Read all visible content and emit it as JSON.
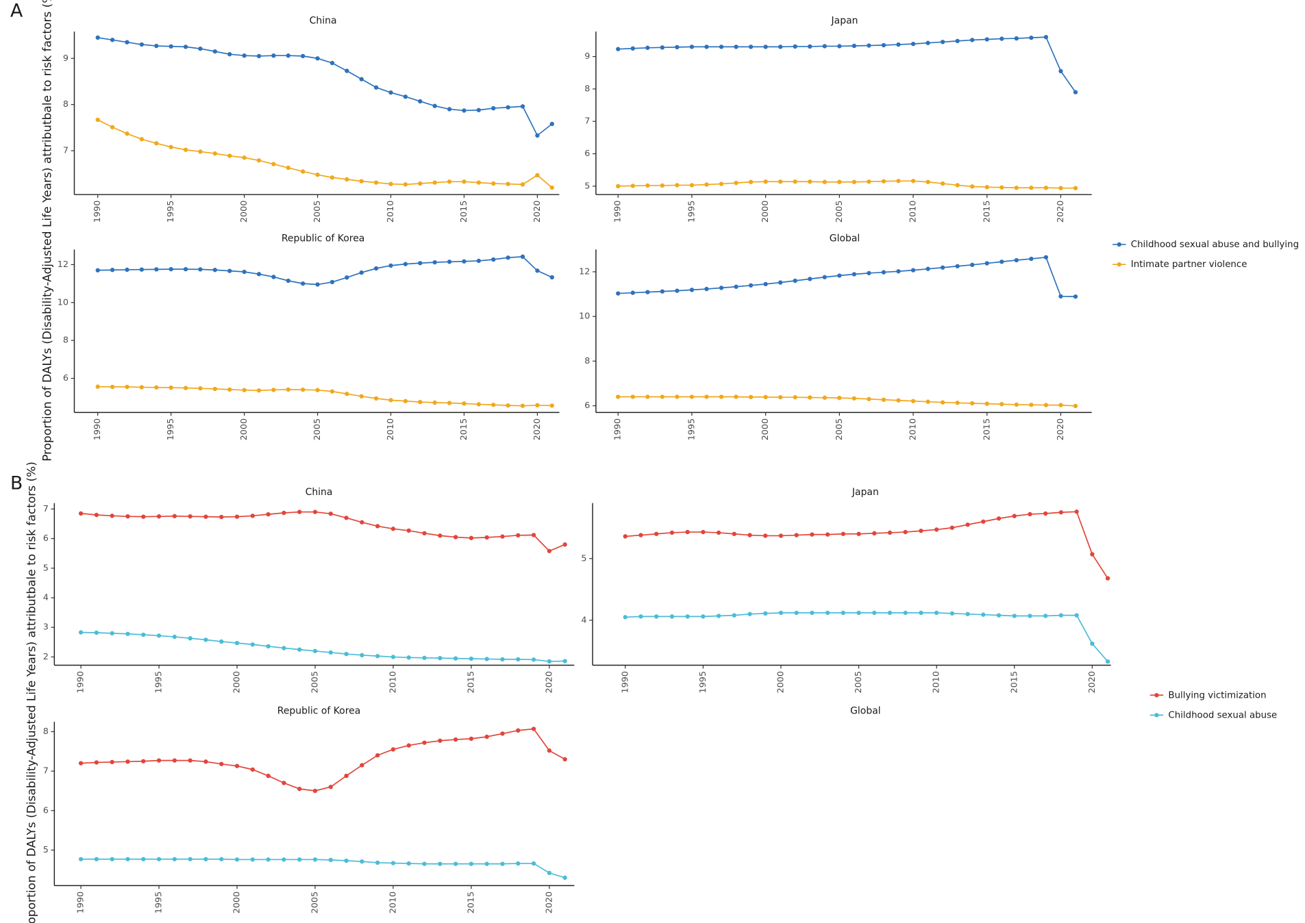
{
  "chart_data": [
    {
      "type": "line",
      "title": "China",
      "panel_label": "A",
      "ylabel": "Proportion of DALYs (Disability-Adjusted Life Years) attributbale to risk factors (%)",
      "x": [
        1990,
        1991,
        1992,
        1993,
        1994,
        1995,
        1996,
        1997,
        1998,
        1999,
        2000,
        2001,
        2002,
        2003,
        2004,
        2005,
        2006,
        2007,
        2008,
        2009,
        2010,
        2011,
        2012,
        2013,
        2014,
        2015,
        2016,
        2017,
        2018,
        2019,
        2020,
        2021
      ],
      "xlim": [
        1988.4,
        2021.5
      ],
      "xticks": [
        1990,
        1995,
        2000,
        2005,
        2010,
        2015,
        2020
      ],
      "ylim": [
        6.05,
        9.58
      ],
      "yticks": [
        7,
        8,
        9
      ],
      "series": [
        {
          "name": "Childhood sexual abuse and bullying",
          "color": "#2e72bd",
          "values": [
            9.45,
            9.4,
            9.35,
            9.3,
            9.27,
            9.26,
            9.25,
            9.21,
            9.15,
            9.09,
            9.06,
            9.05,
            9.06,
            9.06,
            9.05,
            9.0,
            8.9,
            8.73,
            8.55,
            8.37,
            8.26,
            8.17,
            8.07,
            7.97,
            7.9,
            7.87,
            7.88,
            7.92,
            7.94,
            7.96,
            7.33,
            7.58
          ]
        },
        {
          "name": "Intimate partner violence",
          "color": "#f0a81c",
          "values": [
            7.67,
            7.51,
            7.37,
            7.25,
            7.16,
            7.08,
            7.02,
            6.98,
            6.94,
            6.89,
            6.85,
            6.79,
            6.71,
            6.63,
            6.55,
            6.48,
            6.42,
            6.38,
            6.34,
            6.31,
            6.28,
            6.27,
            6.29,
            6.31,
            6.33,
            6.33,
            6.31,
            6.29,
            6.28,
            6.27,
            6.47,
            6.2
          ]
        }
      ]
    },
    {
      "type": "line",
      "title": "Japan",
      "legend": "right",
      "x": [
        1990,
        1991,
        1992,
        1993,
        1994,
        1995,
        1996,
        1997,
        1998,
        1999,
        2000,
        2001,
        2002,
        2003,
        2004,
        2005,
        2006,
        2007,
        2008,
        2009,
        2010,
        2011,
        2012,
        2013,
        2014,
        2015,
        2016,
        2017,
        2018,
        2019,
        2020,
        2021
      ],
      "xlim": [
        1988.5,
        2022.1
      ],
      "xticks": [
        1990,
        1995,
        2000,
        2005,
        2010,
        2015,
        2020
      ],
      "ylim": [
        4.74,
        9.77
      ],
      "yticks": [
        5,
        6,
        7,
        8,
        9
      ],
      "series": [
        {
          "name": "Childhood sexual abuse and bullying",
          "color": "#2e72bd",
          "values": [
            9.23,
            9.25,
            9.27,
            9.28,
            9.29,
            9.3,
            9.3,
            9.3,
            9.3,
            9.3,
            9.3,
            9.3,
            9.31,
            9.31,
            9.32,
            9.32,
            9.33,
            9.34,
            9.35,
            9.37,
            9.39,
            9.42,
            9.45,
            9.48,
            9.51,
            9.53,
            9.55,
            9.56,
            9.58,
            9.6,
            8.55,
            7.9
          ]
        },
        {
          "name": "Intimate partner violence",
          "color": "#f0a81c",
          "values": [
            5.0,
            5.01,
            5.02,
            5.02,
            5.03,
            5.03,
            5.05,
            5.07,
            5.1,
            5.13,
            5.14,
            5.14,
            5.14,
            5.14,
            5.13,
            5.13,
            5.13,
            5.14,
            5.15,
            5.16,
            5.16,
            5.13,
            5.08,
            5.03,
            4.99,
            4.97,
            4.96,
            4.95,
            4.95,
            4.95,
            4.94,
            4.94
          ]
        }
      ]
    },
    {
      "type": "line",
      "title": "Republic of Korea",
      "x": [
        1990,
        1991,
        1992,
        1993,
        1994,
        1995,
        1996,
        1997,
        1998,
        1999,
        2000,
        2001,
        2002,
        2003,
        2004,
        2005,
        2006,
        2007,
        2008,
        2009,
        2010,
        2011,
        2012,
        2013,
        2014,
        2015,
        2016,
        2017,
        2018,
        2019,
        2020,
        2021
      ],
      "xlim": [
        1988.4,
        2021.5
      ],
      "xticks": [
        1990,
        1995,
        2000,
        2005,
        2010,
        2015,
        2020
      ],
      "ylim": [
        4.2,
        12.8
      ],
      "yticks": [
        6,
        8,
        10,
        12
      ],
      "series": [
        {
          "name": "Childhood sexual abuse and bullying",
          "color": "#2e72bd",
          "values": [
            11.7,
            11.72,
            11.73,
            11.74,
            11.75,
            11.76,
            11.76,
            11.75,
            11.72,
            11.67,
            11.62,
            11.5,
            11.35,
            11.15,
            11.0,
            10.95,
            11.08,
            11.32,
            11.58,
            11.8,
            11.95,
            12.03,
            12.08,
            12.12,
            12.15,
            12.17,
            12.2,
            12.27,
            12.37,
            12.42,
            11.68,
            11.33
          ]
        },
        {
          "name": "Intimate partner violence",
          "color": "#f0a81c",
          "values": [
            5.56,
            5.55,
            5.55,
            5.53,
            5.52,
            5.51,
            5.49,
            5.47,
            5.44,
            5.41,
            5.38,
            5.36,
            5.39,
            5.41,
            5.4,
            5.38,
            5.31,
            5.18,
            5.05,
            4.94,
            4.85,
            4.8,
            4.75,
            4.72,
            4.7,
            4.67,
            4.63,
            4.6,
            4.57,
            4.55,
            4.58,
            4.56
          ]
        }
      ]
    },
    {
      "type": "line",
      "title": "Global",
      "x": [
        1990,
        1991,
        1992,
        1993,
        1994,
        1995,
        1996,
        1997,
        1998,
        1999,
        2000,
        2001,
        2002,
        2003,
        2004,
        2005,
        2006,
        2007,
        2008,
        2009,
        2010,
        2011,
        2012,
        2013,
        2014,
        2015,
        2016,
        2017,
        2018,
        2019,
        2020,
        2021
      ],
      "xlim": [
        1988.5,
        2022.1
      ],
      "xticks": [
        1990,
        1995,
        2000,
        2005,
        2010,
        2015,
        2020
      ],
      "ylim": [
        5.7,
        13.0
      ],
      "yticks": [
        6,
        8,
        10,
        12
      ],
      "series": [
        {
          "name": "Childhood sexual abuse and bullying",
          "color": "#2e72bd",
          "values": [
            11.03,
            11.06,
            11.09,
            11.12,
            11.15,
            11.19,
            11.23,
            11.28,
            11.33,
            11.39,
            11.45,
            11.52,
            11.6,
            11.68,
            11.76,
            11.83,
            11.89,
            11.94,
            11.98,
            12.02,
            12.07,
            12.13,
            12.19,
            12.25,
            12.31,
            12.38,
            12.45,
            12.52,
            12.58,
            12.65,
            10.9,
            10.89
          ]
        },
        {
          "name": "Intimate partner violence",
          "color": "#f0a81c",
          "values": [
            6.4,
            6.4,
            6.4,
            6.4,
            6.4,
            6.4,
            6.4,
            6.4,
            6.4,
            6.39,
            6.39,
            6.38,
            6.38,
            6.37,
            6.36,
            6.35,
            6.33,
            6.3,
            6.27,
            6.24,
            6.21,
            6.18,
            6.15,
            6.13,
            6.11,
            6.09,
            6.07,
            6.05,
            6.04,
            6.03,
            6.03,
            5.99
          ]
        }
      ]
    },
    {
      "type": "line",
      "title": "China",
      "panel_label": "B",
      "ylabel": "Proportion of DALYs (Disability-Adjusted Life Years) attributbale to risk factors (%)",
      "x": [
        1990,
        1991,
        1992,
        1993,
        1994,
        1995,
        1996,
        1997,
        1998,
        1999,
        2000,
        2001,
        2002,
        2003,
        2004,
        2005,
        2006,
        2007,
        2008,
        2009,
        2010,
        2011,
        2012,
        2013,
        2014,
        2015,
        2016,
        2017,
        2018,
        2019,
        2020,
        2021
      ],
      "xlim": [
        1988.3,
        2021.6
      ],
      "xticks": [
        1990,
        1995,
        2000,
        2005,
        2010,
        2015,
        2020
      ],
      "ylim": [
        1.72,
        7.2
      ],
      "yticks": [
        2,
        3,
        4,
        5,
        6,
        7
      ],
      "series": [
        {
          "name": "Bullying victimization",
          "color": "#e2453a",
          "values": [
            6.85,
            6.8,
            6.77,
            6.75,
            6.74,
            6.75,
            6.76,
            6.75,
            6.74,
            6.73,
            6.74,
            6.77,
            6.82,
            6.87,
            6.9,
            6.9,
            6.84,
            6.7,
            6.55,
            6.42,
            6.33,
            6.27,
            6.18,
            6.1,
            6.05,
            6.02,
            6.04,
            6.07,
            6.11,
            6.12,
            5.58,
            5.8
          ]
        },
        {
          "name": "Childhood sexual abuse",
          "color": "#4bbcd6",
          "values": [
            2.83,
            2.82,
            2.8,
            2.78,
            2.75,
            2.72,
            2.68,
            2.63,
            2.58,
            2.52,
            2.47,
            2.42,
            2.36,
            2.3,
            2.25,
            2.2,
            2.15,
            2.1,
            2.06,
            2.03,
            2.0,
            1.98,
            1.97,
            1.96,
            1.95,
            1.94,
            1.93,
            1.92,
            1.92,
            1.91,
            1.85,
            1.86
          ]
        }
      ]
    },
    {
      "type": "line",
      "title": "Japan",
      "legend": "right",
      "x": [
        1990,
        1991,
        1992,
        1993,
        1994,
        1995,
        1996,
        1997,
        1998,
        1999,
        2000,
        2001,
        2002,
        2003,
        2004,
        2005,
        2006,
        2007,
        2008,
        2009,
        2010,
        2011,
        2012,
        2013,
        2014,
        2015,
        2016,
        2017,
        2018,
        2019,
        2020,
        2021
      ],
      "xlim": [
        1987.9,
        2021.2
      ],
      "xticks": [
        1990,
        1995,
        2000,
        2005,
        2010,
        2015,
        2020
      ],
      "ylim": [
        3.27,
        5.9
      ],
      "yticks": [
        4,
        5
      ],
      "series": [
        {
          "name": "Bullying victimization",
          "color": "#e2453a",
          "values": [
            5.36,
            5.38,
            5.4,
            5.42,
            5.43,
            5.43,
            5.42,
            5.4,
            5.38,
            5.37,
            5.37,
            5.38,
            5.39,
            5.39,
            5.4,
            5.4,
            5.41,
            5.42,
            5.43,
            5.45,
            5.47,
            5.5,
            5.55,
            5.6,
            5.65,
            5.69,
            5.72,
            5.73,
            5.75,
            5.76,
            5.07,
            4.68
          ]
        },
        {
          "name": "Childhood sexual abuse",
          "color": "#4bbcd6",
          "values": [
            4.05,
            4.06,
            4.06,
            4.06,
            4.06,
            4.06,
            4.07,
            4.08,
            4.1,
            4.11,
            4.12,
            4.12,
            4.12,
            4.12,
            4.12,
            4.12,
            4.12,
            4.12,
            4.12,
            4.12,
            4.12,
            4.11,
            4.1,
            4.09,
            4.08,
            4.07,
            4.07,
            4.07,
            4.08,
            4.08,
            3.62,
            3.33
          ]
        }
      ]
    },
    {
      "type": "line",
      "title": "Republic of Korea",
      "x": [
        1990,
        1991,
        1992,
        1993,
        1994,
        1995,
        1996,
        1997,
        1998,
        1999,
        2000,
        2001,
        2002,
        2003,
        2004,
        2005,
        2006,
        2007,
        2008,
        2009,
        2010,
        2011,
        2012,
        2013,
        2014,
        2015,
        2016,
        2017,
        2018,
        2019,
        2020,
        2021
      ],
      "xlim": [
        1988.3,
        2021.6
      ],
      "xticks": [
        1990,
        1995,
        2000,
        2005,
        2010,
        2015,
        2020
      ],
      "ylim": [
        4.1,
        8.25
      ],
      "yticks": [
        5,
        6,
        7,
        8
      ],
      "series": [
        {
          "name": "Bullying victimization",
          "color": "#e2453a",
          "values": [
            7.2,
            7.22,
            7.23,
            7.24,
            7.25,
            7.27,
            7.27,
            7.27,
            7.24,
            7.18,
            7.13,
            7.04,
            6.88,
            6.7,
            6.55,
            6.5,
            6.6,
            6.88,
            7.15,
            7.4,
            7.55,
            7.65,
            7.72,
            7.77,
            7.8,
            7.82,
            7.87,
            7.95,
            8.03,
            8.07,
            7.52,
            7.3
          ]
        },
        {
          "name": "Childhood sexual abuse",
          "color": "#4bbcd6",
          "values": [
            4.77,
            4.77,
            4.77,
            4.77,
            4.77,
            4.77,
            4.77,
            4.77,
            4.77,
            4.77,
            4.76,
            4.76,
            4.76,
            4.76,
            4.76,
            4.76,
            4.75,
            4.73,
            4.71,
            4.68,
            4.67,
            4.66,
            4.65,
            4.65,
            4.65,
            4.65,
            4.65,
            4.65,
            4.66,
            4.66,
            4.42,
            4.3
          ]
        }
      ]
    },
    {
      "type": "line",
      "title": "Global"
    }
  ]
}
